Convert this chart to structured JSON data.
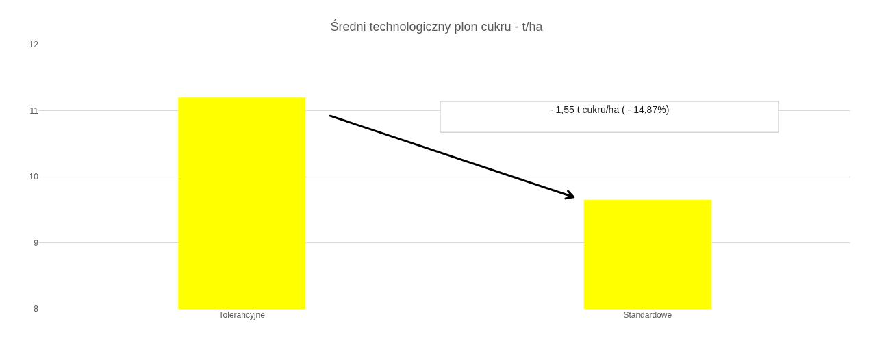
{
  "chart_data": {
    "type": "bar",
    "title": "Średni technologiczny plon cukru - t/ha",
    "categories": [
      "Tolerancyjne",
      "Standardowe"
    ],
    "values": [
      11.2,
      9.65
    ],
    "color": "#ffff00",
    "ylim": [
      8,
      12
    ],
    "yticks": [
      8,
      9,
      10,
      11,
      12
    ],
    "grid": "y",
    "annotations": [
      "- 1,55 t cukru/ha ( - 14,87%)"
    ]
  }
}
